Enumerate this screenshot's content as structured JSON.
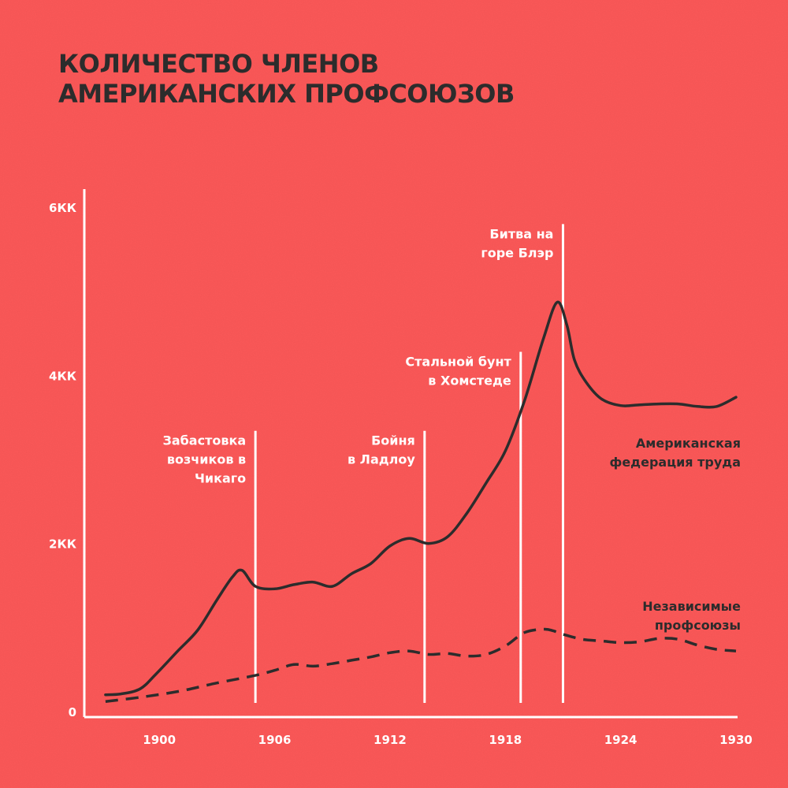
{
  "colors": {
    "background": "#f95757",
    "ink": "#2c2c2c",
    "annotation": "#ffffff",
    "axis": "#ffffff"
  },
  "chart_data": {
    "type": "line",
    "title_lines": [
      "КОЛИЧЕСТВО ЧЛЕНОВ",
      "АМЕРИКАНСКИХ ПРОФСОЮЗОВ"
    ],
    "xlim": [
      1897,
      1930
    ],
    "ylim": [
      0,
      6000000
    ],
    "x_ticks": [
      1900,
      1906,
      1912,
      1918,
      1924,
      1930
    ],
    "x_tick_labels": [
      "1900",
      "1906",
      "1912",
      "1918",
      "1924",
      "1930"
    ],
    "y_ticks": [
      0,
      2000000,
      4000000,
      6000000
    ],
    "y_tick_labels": [
      "0",
      "2КК",
      "4КК",
      "6КК"
    ],
    "grid": false,
    "series": [
      {
        "name": "Американская федерация труда",
        "name_lines": [
          "Американская",
          "федерация труда"
        ],
        "style": "solid",
        "x": [
          1897.2,
          1898.0,
          1899.0,
          1899.8,
          1901.0,
          1902.0,
          1903.0,
          1903.8,
          1904.3,
          1905.0,
          1906.0,
          1907.0,
          1908.0,
          1909.0,
          1910.0,
          1911.0,
          1912.0,
          1913.0,
          1914.0,
          1915.0,
          1916.0,
          1917.0,
          1918.0,
          1919.0,
          1920.0,
          1920.7,
          1921.2,
          1921.6,
          1922.2,
          1923.0,
          1924.0,
          1925.0,
          1926.0,
          1927.0,
          1928.0,
          1929.0,
          1930.0
        ],
        "y": [
          200000,
          210000,
          270000,
          440000,
          730000,
          970000,
          1330000,
          1600000,
          1680000,
          1490000,
          1460000,
          1510000,
          1540000,
          1490000,
          1640000,
          1760000,
          1970000,
          2060000,
          2000000,
          2080000,
          2360000,
          2720000,
          3100000,
          3700000,
          4450000,
          4870000,
          4600000,
          4180000,
          3920000,
          3720000,
          3640000,
          3650000,
          3660000,
          3660000,
          3630000,
          3630000,
          3740000
        ]
      },
      {
        "name": "Независимые профсоюзы",
        "name_lines": [
          "Независимые",
          "профсоюзы"
        ],
        "style": "dashed",
        "x": [
          1897.2,
          1899.0,
          1901.0,
          1903.0,
          1905.0,
          1906.0,
          1907.0,
          1908.0,
          1909.0,
          1910.0,
          1911.0,
          1912.0,
          1913.0,
          1914.0,
          1915.0,
          1916.0,
          1917.0,
          1918.0,
          1919.0,
          1920.0,
          1920.5,
          1921.0,
          1922.0,
          1923.0,
          1924.0,
          1925.0,
          1926.0,
          1927.0,
          1928.0,
          1929.0,
          1930.0
        ],
        "y": [
          120000,
          170000,
          240000,
          340000,
          430000,
          490000,
          560000,
          540000,
          570000,
          610000,
          650000,
          700000,
          720000,
          680000,
          690000,
          660000,
          680000,
          780000,
          940000,
          980000,
          960000,
          920000,
          860000,
          840000,
          820000,
          830000,
          870000,
          860000,
          790000,
          740000,
          720000
        ]
      }
    ],
    "annotations": [
      {
        "x": 1905.0,
        "y_top": 3340000,
        "lines": [
          "Забастовка",
          "возчиков в",
          "Чикаго"
        ]
      },
      {
        "x": 1913.8,
        "y_top": 3340000,
        "lines": [
          "Бойня",
          "в Ладлоу"
        ]
      },
      {
        "x": 1918.8,
        "y_top": 4280000,
        "lines": [
          "Стальной бунт",
          "в Хомстеде"
        ]
      },
      {
        "x": 1921.0,
        "y_top": 5800000,
        "lines": [
          "Битва на",
          "горе Блэр"
        ]
      }
    ]
  }
}
